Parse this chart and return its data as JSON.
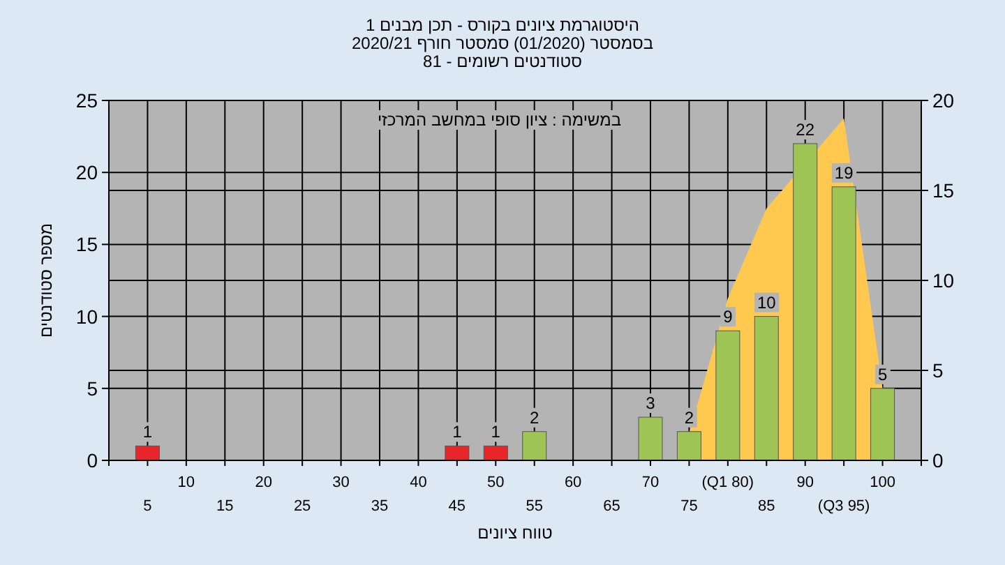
{
  "chart_data": {
    "type": "bar",
    "title": "היסטוגרמת ציונים בקורס - תכן מבנים 1",
    "subtitle": "בסמסטר (01/2020) סמסטר חורף 2020/21\nסטודנטים רשומים - 81",
    "xlabel": "טווח ציונים",
    "ylabel": "מספר סטודנטים",
    "annotations": [
      "במשימה : ציון סופי במחשב המרכזי"
    ],
    "categories": [
      "5",
      "10",
      "15",
      "20",
      "25",
      "30",
      "35",
      "40",
      "45",
      "50",
      "55",
      "60",
      "65",
      "70",
      "75",
      "(Q1 80)",
      "85",
      "90",
      "(Q3 95)",
      "100"
    ],
    "series": [
      {
        "type": "area",
        "axis": "y2",
        "color": "#ffc94f",
        "values": [
          null,
          null,
          null,
          null,
          null,
          null,
          null,
          null,
          null,
          null,
          null,
          null,
          null,
          null,
          1.5,
          9,
          14,
          null,
          19,
          4
        ]
      },
      {
        "colors": [
          "#e8262a",
          "#9dc454",
          "#9dc454",
          "#9dc454",
          "#9dc454",
          "#9dc454",
          "#9dc454",
          "#9dc454",
          "#e8262a",
          "#e8262a",
          "#9dc454",
          "#9dc454",
          "#9dc454",
          "#9dc454",
          "#9dc454",
          "#9dc454",
          "#9dc454",
          "#9dc454",
          "#9dc454",
          "#9dc454"
        ],
        "values": [
          1,
          0,
          0,
          0,
          0,
          0,
          0,
          0,
          1,
          1,
          2,
          0,
          0,
          3,
          2,
          9,
          10,
          22,
          19,
          5
        ],
        "value_labels": [
          "1",
          null,
          null,
          null,
          null,
          null,
          null,
          null,
          "1",
          "1",
          "2",
          null,
          null,
          "3",
          "2",
          "9",
          "10",
          "22",
          "19",
          "5"
        ]
      }
    ],
    "ylim": [
      0,
      25
    ],
    "yticks": [
      0,
      5,
      10,
      15,
      20,
      25
    ],
    "y2lim": [
      0,
      20
    ],
    "y2ticks": [
      0,
      5,
      10,
      15,
      20
    ],
    "grid": true
  }
}
